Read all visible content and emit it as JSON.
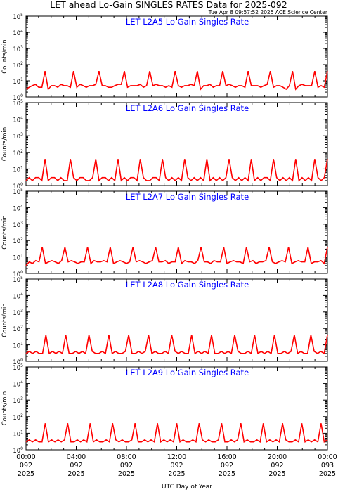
{
  "figure": {
    "title": "LET ahead Lo-Gain SINGLES RATES Data for 2025-092",
    "timestamp": "Tue Apr  8 09:57:52 2025 ACE Science Center",
    "xlabel": "UTC Day of Year",
    "ylabel": "Counts/min",
    "x_ticks": [
      {
        "t": "00:00",
        "d": "092",
        "y": "2025"
      },
      {
        "t": "04:00",
        "d": "092",
        "y": "2025"
      },
      {
        "t": "08:00",
        "d": "092",
        "y": "2025"
      },
      {
        "t": "12:00",
        "d": "092",
        "y": "2025"
      },
      {
        "t": "16:00",
        "d": "092",
        "y": "2025"
      },
      {
        "t": "20:00",
        "d": "092",
        "y": "2025"
      },
      {
        "t": "00:00",
        "d": "093",
        "y": "2025"
      }
    ],
    "y_tick_labels": [
      "10",
      "10",
      "10",
      "10",
      "10",
      "10"
    ],
    "y_tick_exponents": [
      "0",
      "1",
      "2",
      "3",
      "4",
      "5"
    ],
    "colors": {
      "line": "#ff0000",
      "panel_title": "#0000ff",
      "axis": "#000000",
      "background": "#ffffff"
    }
  },
  "chart_data": [
    {
      "type": "line",
      "title": "LET L2A5 Lo Gain Singles Rate",
      "xlim": [
        0,
        24
      ],
      "ylim": [
        1,
        100000
      ],
      "yscale": "log",
      "series": [
        {
          "values": [
            3,
            4,
            5,
            6,
            4,
            4,
            40,
            3,
            5,
            5,
            4,
            6,
            5,
            5,
            4,
            40,
            4,
            6,
            5,
            4,
            5,
            5,
            6,
            40,
            5,
            5,
            4,
            4,
            5,
            6,
            6,
            40,
            4,
            5,
            5,
            5,
            6,
            4,
            5,
            40,
            5,
            6,
            5,
            5,
            4,
            5,
            4,
            40,
            5,
            4,
            5,
            5,
            6,
            5,
            40,
            3,
            5,
            5,
            6,
            4,
            5,
            5,
            40,
            5,
            6,
            5,
            4,
            5,
            5,
            4,
            40,
            5,
            5,
            5,
            4,
            5,
            6,
            40,
            4,
            5,
            5,
            4,
            3,
            5,
            40,
            3,
            5,
            6,
            5,
            5,
            5,
            40,
            4,
            5,
            4,
            40
          ]
        }
      ]
    },
    {
      "type": "line",
      "title": "LET L2A6 Lo Gain Singles Rate",
      "xlim": [
        0,
        24
      ],
      "ylim": [
        1,
        100000
      ],
      "yscale": "log",
      "series": [
        {
          "values": [
            2,
            3,
            2,
            3,
            3,
            2,
            40,
            2,
            3,
            3,
            2,
            3,
            2,
            2,
            40,
            3,
            2,
            3,
            3,
            2,
            2,
            3,
            40,
            2,
            3,
            3,
            2,
            3,
            2,
            40,
            2,
            3,
            2,
            3,
            3,
            2,
            40,
            3,
            2,
            2,
            3,
            3,
            2,
            40,
            3,
            2,
            3,
            2,
            3,
            2,
            40,
            3,
            2,
            3,
            2,
            3,
            2,
            40,
            2,
            3,
            2,
            3,
            2,
            3,
            40,
            3,
            2,
            3,
            2,
            3,
            2,
            40,
            2,
            3,
            2,
            3,
            3,
            2,
            40,
            3,
            2,
            3,
            2,
            3,
            2,
            40,
            2,
            3,
            2,
            3,
            2,
            40,
            3,
            2,
            3,
            40
          ]
        }
      ]
    },
    {
      "type": "line",
      "title": "LET L2A7 Lo Gain Singles Rate",
      "xlim": [
        0,
        24
      ],
      "ylim": [
        1,
        100000
      ],
      "yscale": "log",
      "series": [
        {
          "values": [
            3,
            5,
            4,
            6,
            5,
            40,
            4,
            5,
            6,
            5,
            4,
            6,
            40,
            5,
            6,
            5,
            4,
            5,
            5,
            40,
            4,
            6,
            5,
            5,
            6,
            5,
            40,
            4,
            5,
            6,
            5,
            4,
            5,
            40,
            5,
            6,
            5,
            4,
            5,
            6,
            40,
            5,
            5,
            6,
            4,
            5,
            5,
            40,
            4,
            6,
            5,
            5,
            4,
            6,
            40,
            5,
            5,
            4,
            6,
            5,
            5,
            40,
            4,
            5,
            6,
            5,
            5,
            4,
            40,
            5,
            6,
            4,
            5,
            5,
            6,
            40,
            5,
            4,
            5,
            6,
            5,
            40,
            4,
            5,
            6,
            5,
            5,
            40,
            4,
            5,
            5,
            6,
            4,
            40
          ]
        }
      ]
    },
    {
      "type": "line",
      "title": "LET L2A8 Lo Gain Singles Rate",
      "xlim": [
        0,
        24
      ],
      "ylim": [
        1,
        100000
      ],
      "yscale": "log",
      "series": [
        {
          "values": [
            3,
            4,
            3,
            4,
            3,
            3,
            40,
            3,
            4,
            3,
            4,
            3,
            40,
            3,
            3,
            4,
            3,
            4,
            3,
            40,
            4,
            3,
            3,
            4,
            3,
            40,
            3,
            4,
            3,
            3,
            4,
            40,
            3,
            3,
            4,
            3,
            4,
            40,
            3,
            4,
            3,
            3,
            4,
            3,
            40,
            4,
            3,
            4,
            3,
            3,
            40,
            3,
            4,
            3,
            4,
            3,
            40,
            3,
            3,
            4,
            3,
            4,
            3,
            40,
            4,
            3,
            3,
            4,
            3,
            40,
            3,
            4,
            3,
            4,
            3,
            40,
            3,
            3,
            4,
            3,
            4,
            40,
            3,
            4,
            3,
            3,
            40,
            4,
            3,
            4,
            3,
            40
          ]
        }
      ]
    },
    {
      "type": "line",
      "title": "LET L2A9 Lo Gain Singles Rate",
      "xlim": [
        0,
        24
      ],
      "ylim": [
        1,
        100000
      ],
      "yscale": "log",
      "series": [
        {
          "values": [
            3,
            4,
            3,
            4,
            3,
            3,
            40,
            3,
            4,
            3,
            4,
            3,
            4,
            40,
            3,
            3,
            4,
            3,
            4,
            3,
            40,
            3,
            4,
            3,
            3,
            4,
            3,
            40,
            4,
            3,
            4,
            3,
            3,
            4,
            40,
            3,
            3,
            4,
            3,
            4,
            3,
            40,
            3,
            4,
            3,
            4,
            3,
            40,
            3,
            4,
            3,
            3,
            4,
            3,
            40,
            4,
            3,
            4,
            3,
            3,
            4,
            40,
            3,
            3,
            4,
            3,
            4,
            40,
            3,
            4,
            3,
            3,
            4,
            3,
            40,
            3,
            4,
            3,
            4,
            3,
            40,
            4,
            3,
            3,
            4,
            3,
            40,
            3,
            4,
            3,
            4,
            3,
            40,
            3,
            4
          ]
        }
      ]
    }
  ]
}
